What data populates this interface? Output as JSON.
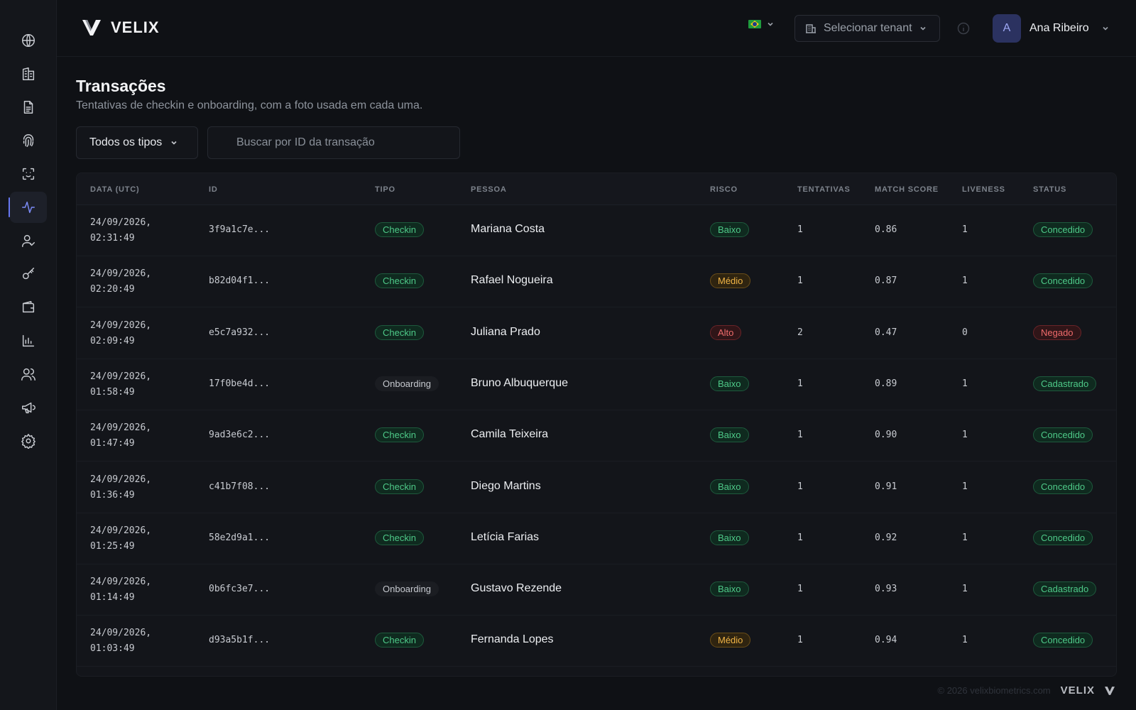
{
  "brand": {
    "name": "VELIX"
  },
  "header": {
    "tenant_placeholder": "Selecionar tenant",
    "user": {
      "initial": "A",
      "name": "Ana Ribeiro"
    }
  },
  "sidebar": {
    "items": [
      {
        "icon": "globe-icon"
      },
      {
        "icon": "building-icon"
      },
      {
        "icon": "document-icon"
      },
      {
        "icon": "fingerprint-icon"
      },
      {
        "icon": "face-scan-icon"
      },
      {
        "icon": "activity-icon",
        "active": true
      },
      {
        "icon": "user-check-icon"
      },
      {
        "icon": "key-icon"
      },
      {
        "icon": "wallet-icon"
      },
      {
        "icon": "bar-chart-icon"
      },
      {
        "icon": "users-icon"
      },
      {
        "icon": "megaphone-icon"
      },
      {
        "icon": "gear-icon"
      }
    ]
  },
  "page": {
    "title": "Transações",
    "subtitle": "Tentativas de checkin e onboarding, com a foto usada em cada uma."
  },
  "filters": {
    "type_label": "Todos os tipos",
    "search_placeholder": "Buscar por ID da transação"
  },
  "table": {
    "headers": [
      "DATA (UTC)",
      "ID",
      "TIPO",
      "PESSOA",
      "RISCO",
      "TENTATIVAS",
      "MATCH SCORE",
      "LIVENESS",
      "STATUS"
    ],
    "rows": [
      {
        "date": "24/09/2026,\n02:31:49",
        "id": "3f9a1c7e...",
        "tipo": "Checkin",
        "pessoa": "Mariana Costa",
        "risco": "Baixo",
        "tentativas": "1",
        "match": "0.86",
        "liveness": "1",
        "status": "Concedido"
      },
      {
        "date": "24/09/2026,\n02:20:49",
        "id": "b82d04f1...",
        "tipo": "Checkin",
        "pessoa": "Rafael Nogueira",
        "risco": "Médio",
        "tentativas": "1",
        "match": "0.87",
        "liveness": "1",
        "status": "Concedido"
      },
      {
        "date": "24/09/2026,\n02:09:49",
        "id": "e5c7a932...",
        "tipo": "Checkin",
        "pessoa": "Juliana Prado",
        "risco": "Alto",
        "tentativas": "2",
        "match": "0.47",
        "liveness": "0",
        "status": "Negado"
      },
      {
        "date": "24/09/2026,\n01:58:49",
        "id": "17f0be4d...",
        "tipo": "Onboarding",
        "pessoa": "Bruno Albuquerque",
        "risco": "Baixo",
        "tentativas": "1",
        "match": "0.89",
        "liveness": "1",
        "status": "Cadastrado"
      },
      {
        "date": "24/09/2026,\n01:47:49",
        "id": "9ad3e6c2...",
        "tipo": "Checkin",
        "pessoa": "Camila Teixeira",
        "risco": "Baixo",
        "tentativas": "1",
        "match": "0.90",
        "liveness": "1",
        "status": "Concedido"
      },
      {
        "date": "24/09/2026,\n01:36:49",
        "id": "c41b7f08...",
        "tipo": "Checkin",
        "pessoa": "Diego Martins",
        "risco": "Baixo",
        "tentativas": "1",
        "match": "0.91",
        "liveness": "1",
        "status": "Concedido"
      },
      {
        "date": "24/09/2026,\n01:25:49",
        "id": "58e2d9a1...",
        "tipo": "Checkin",
        "pessoa": "Letícia Farias",
        "risco": "Baixo",
        "tentativas": "1",
        "match": "0.92",
        "liveness": "1",
        "status": "Concedido"
      },
      {
        "date": "24/09/2026,\n01:14:49",
        "id": "0b6fc3e7...",
        "tipo": "Onboarding",
        "pessoa": "Gustavo Rezende",
        "risco": "Baixo",
        "tentativas": "1",
        "match": "0.93",
        "liveness": "1",
        "status": "Cadastrado"
      },
      {
        "date": "24/09/2026,\n01:03:49",
        "id": "d93a5b1f...",
        "tipo": "Checkin",
        "pessoa": "Fernanda Lopes",
        "risco": "Médio",
        "tentativas": "1",
        "match": "0.94",
        "liveness": "1",
        "status": "Concedido"
      }
    ]
  },
  "footer": {
    "copyright": "© 2026 velixbiometrics.com",
    "logo": "VELIX"
  }
}
